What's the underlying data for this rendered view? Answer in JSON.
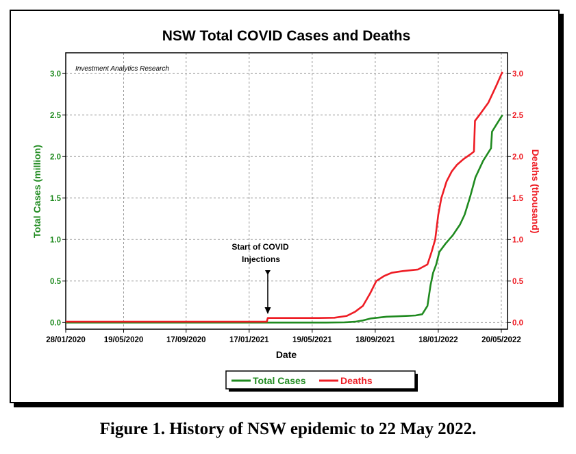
{
  "caption": "Figure 1. History of NSW epidemic to 22 May 2022.",
  "colors": {
    "cases": "#1f8a1f",
    "deaths": "#ee1c24",
    "grid": "#9a9a9a"
  },
  "chart_data": {
    "type": "line",
    "title": "NSW Total COVID Cases and Deaths",
    "watermark": "Investment Analytics Research",
    "xlabel": "Date",
    "ylabel_left": "Total Cases (million)",
    "ylabel_right": "Deaths (thousand)",
    "ylim": [
      -0.08,
      3.25
    ],
    "yticks": [
      "0.0",
      "0.5",
      "1.0",
      "1.5",
      "2.0",
      "2.5",
      "3.0"
    ],
    "xlim": [
      "2020-01-28",
      "2022-06-01"
    ],
    "xticks": [
      {
        "date": "2020-01-28",
        "label": "28/01/2020"
      },
      {
        "date": "2020-05-19",
        "label": "19/05/2020"
      },
      {
        "date": "2020-09-17",
        "label": "17/09/2020"
      },
      {
        "date": "2021-01-17",
        "label": "17/01/2021"
      },
      {
        "date": "2021-05-19",
        "label": "19/05/2021"
      },
      {
        "date": "2021-09-18",
        "label": "18/09/2021"
      },
      {
        "date": "2022-01-18",
        "label": "18/01/2022"
      },
      {
        "date": "2022-05-20",
        "label": "20/05/2022"
      }
    ],
    "annotation": {
      "lines": [
        "Start of COVID",
        "Injections"
      ],
      "date": "2021-02-22"
    },
    "legend": {
      "position": "bottom"
    },
    "series": [
      {
        "name": "Total Cases",
        "axis": "left",
        "points": [
          [
            "2020-01-28",
            0.0
          ],
          [
            "2021-06-15",
            0.0
          ],
          [
            "2021-07-20",
            0.003
          ],
          [
            "2021-08-10",
            0.01
          ],
          [
            "2021-08-25",
            0.025
          ],
          [
            "2021-09-10",
            0.05
          ],
          [
            "2021-09-25",
            0.06
          ],
          [
            "2021-10-10",
            0.07
          ],
          [
            "2021-11-01",
            0.075
          ],
          [
            "2021-11-20",
            0.08
          ],
          [
            "2021-12-05",
            0.085
          ],
          [
            "2021-12-18",
            0.1
          ],
          [
            "2021-12-28",
            0.2
          ],
          [
            "2022-01-03",
            0.45
          ],
          [
            "2022-01-08",
            0.6
          ],
          [
            "2022-01-14",
            0.7
          ],
          [
            "2022-01-20",
            0.85
          ],
          [
            "2022-02-01",
            0.95
          ],
          [
            "2022-02-15",
            1.05
          ],
          [
            "2022-03-01",
            1.18
          ],
          [
            "2022-03-10",
            1.3
          ],
          [
            "2022-03-20",
            1.5
          ],
          [
            "2022-03-31",
            1.75
          ],
          [
            "2022-04-15",
            1.95
          ],
          [
            "2022-04-30",
            2.1
          ],
          [
            "2022-05-02",
            2.3
          ],
          [
            "2022-05-10",
            2.38
          ],
          [
            "2022-05-22",
            2.5
          ]
        ]
      },
      {
        "name": "Deaths",
        "axis": "right",
        "points": [
          [
            "2020-01-28",
            0.01
          ],
          [
            "2021-02-20",
            0.01
          ],
          [
            "2021-02-22",
            0.055
          ],
          [
            "2021-06-01",
            0.055
          ],
          [
            "2021-07-01",
            0.058
          ],
          [
            "2021-07-25",
            0.08
          ],
          [
            "2021-08-10",
            0.13
          ],
          [
            "2021-08-25",
            0.2
          ],
          [
            "2021-09-08",
            0.35
          ],
          [
            "2021-09-20",
            0.5
          ],
          [
            "2021-10-05",
            0.56
          ],
          [
            "2021-10-20",
            0.6
          ],
          [
            "2021-11-10",
            0.62
          ],
          [
            "2021-12-10",
            0.64
          ],
          [
            "2021-12-28",
            0.7
          ],
          [
            "2022-01-05",
            0.85
          ],
          [
            "2022-01-12",
            1.0
          ],
          [
            "2022-01-18",
            1.3
          ],
          [
            "2022-01-24",
            1.5
          ],
          [
            "2022-02-03",
            1.7
          ],
          [
            "2022-02-13",
            1.82
          ],
          [
            "2022-02-23",
            1.9
          ],
          [
            "2022-03-08",
            1.97
          ],
          [
            "2022-03-22",
            2.03
          ],
          [
            "2022-03-28",
            2.06
          ],
          [
            "2022-03-30",
            2.43
          ],
          [
            "2022-04-10",
            2.52
          ],
          [
            "2022-04-25",
            2.65
          ],
          [
            "2022-05-10",
            2.85
          ],
          [
            "2022-05-22",
            3.02
          ]
        ]
      }
    ]
  }
}
